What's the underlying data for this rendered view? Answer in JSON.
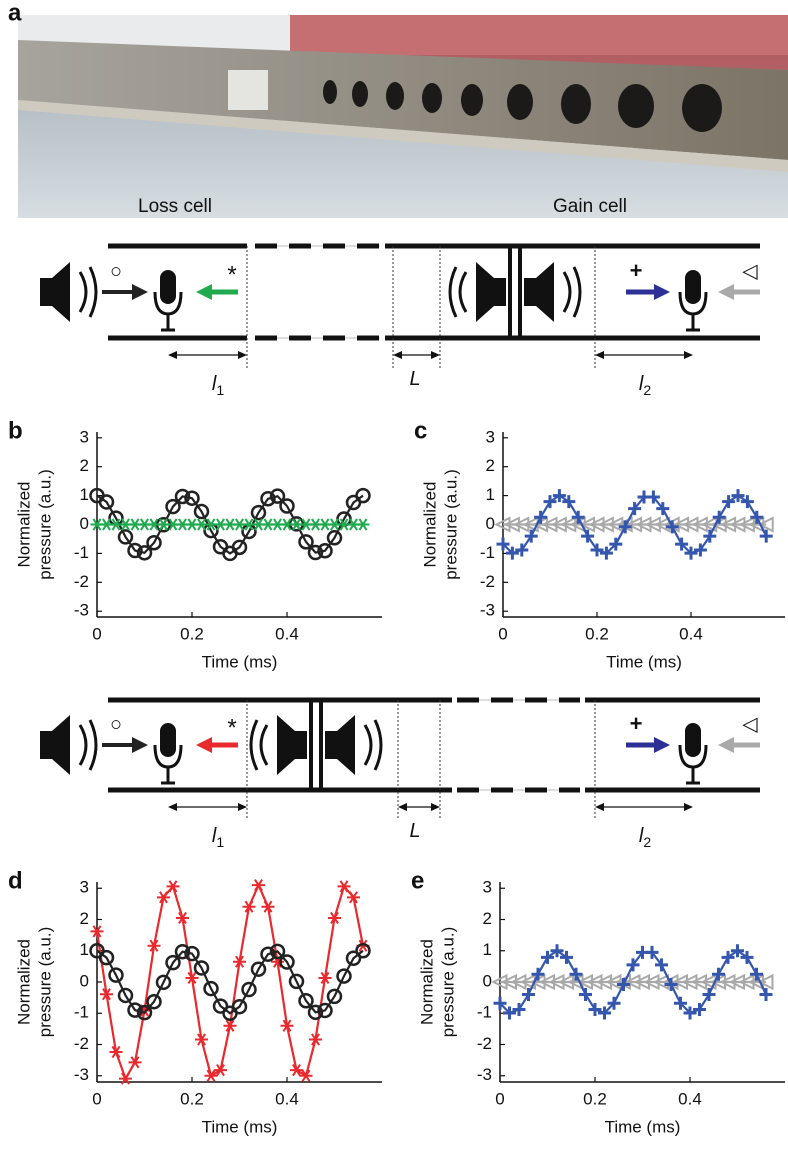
{
  "photo": {
    "panel": "a",
    "labels": [
      "Loss cell",
      "Gain cell"
    ]
  },
  "schematics": [
    {
      "symbols": [
        "○",
        "*",
        "+",
        "◁"
      ],
      "dims": [
        {
          "text": "l",
          "sub": "1"
        },
        {
          "text": "L"
        },
        {
          "text": "l",
          "sub": "2"
        }
      ]
    },
    {
      "symbols": [
        "○",
        "*",
        "+",
        "◁"
      ],
      "dims": [
        {
          "text": "l",
          "sub": "1"
        },
        {
          "text": "L"
        },
        {
          "text": "l",
          "sub": "2"
        }
      ]
    }
  ],
  "chart_data": [
    {
      "type": "line",
      "panel": "b",
      "xlabel": "Time (ms)",
      "ylabel": [
        "Normalized",
        "pressure (a.u.)"
      ],
      "xlim": [
        0,
        0.6
      ],
      "xticks": [
        0,
        0.2,
        0.4
      ],
      "ylim": [
        -3.2,
        3.2
      ],
      "yticks": [
        -3,
        -2,
        -1,
        0,
        1,
        2,
        3
      ],
      "x": [
        0,
        0.02,
        0.04,
        0.06,
        0.08,
        0.1,
        0.12,
        0.14,
        0.16,
        0.18,
        0.2,
        0.22,
        0.24,
        0.26,
        0.28,
        0.3,
        0.32,
        0.34,
        0.36,
        0.38,
        0.4,
        0.42,
        0.44,
        0.46,
        0.48,
        0.5,
        0.52,
        0.54,
        0.56
      ],
      "series": [
        {
          "color": "#222222",
          "marker": "circle",
          "values": [
            1,
            0.78,
            0.22,
            -0.43,
            -0.9,
            -0.98,
            -0.63,
            -0.01,
            0.62,
            0.97,
            0.91,
            0.45,
            -0.21,
            -0.77,
            -1,
            -0.79,
            -0.24,
            0.41,
            0.89,
            0.98,
            0.64,
            0.02,
            -0.6,
            -0.97,
            -0.91,
            -0.46,
            0.19,
            0.76,
            1
          ]
        },
        {
          "color": "#1faa4f",
          "marker": "asterisk",
          "values": [
            0,
            0,
            0,
            0,
            0,
            0,
            0,
            0,
            0,
            0,
            0,
            0,
            0,
            0,
            0,
            0,
            0,
            0,
            0,
            0,
            0,
            0,
            0,
            0,
            0,
            0,
            0,
            0,
            0
          ]
        }
      ]
    },
    {
      "type": "line",
      "panel": "c",
      "xlabel": "Time (ms)",
      "ylabel": [
        "Normalized",
        "pressure (a.u.)"
      ],
      "xlim": [
        0,
        0.6
      ],
      "xticks": [
        0,
        0.2,
        0.4
      ],
      "ylim": [
        -3.2,
        3.2
      ],
      "yticks": [
        -3,
        -2,
        -1,
        0,
        1,
        2,
        3
      ],
      "x": [
        0,
        0.02,
        0.04,
        0.06,
        0.08,
        0.1,
        0.12,
        0.14,
        0.16,
        0.18,
        0.2,
        0.22,
        0.24,
        0.26,
        0.28,
        0.3,
        0.32,
        0.34,
        0.36,
        0.38,
        0.4,
        0.42,
        0.44,
        0.46,
        0.48,
        0.5,
        0.52,
        0.54,
        0.56
      ],
      "series": [
        {
          "color": "#a9a9a9",
          "marker": "triangle-left",
          "values": [
            0,
            0,
            0,
            0,
            0,
            0,
            0,
            0,
            0,
            0,
            0,
            0,
            0,
            0,
            0,
            0,
            0,
            0,
            0,
            0,
            0,
            0,
            0,
            0,
            0,
            0,
            0,
            0,
            0
          ]
        },
        {
          "color": "#3556ad",
          "marker": "plus",
          "values": [
            -0.68,
            -0.99,
            -0.88,
            -0.4,
            0.25,
            0.79,
            1,
            0.79,
            0.25,
            -0.4,
            -0.88,
            -0.99,
            -0.68,
            -0.08,
            0.55,
            0.95,
            0.95,
            0.55,
            -0.08,
            -0.68,
            -0.99,
            -0.88,
            -0.4,
            0.25,
            0.79,
            1,
            0.79,
            0.25,
            -0.4
          ]
        }
      ]
    },
    {
      "type": "line",
      "panel": "d",
      "xlabel": "Time (ms)",
      "ylabel": [
        "Normalized",
        "pressure (a.u.)"
      ],
      "xlim": [
        0,
        0.6
      ],
      "xticks": [
        0,
        0.2,
        0.4
      ],
      "ylim": [
        -3.2,
        3.2
      ],
      "yticks": [
        -3,
        -2,
        -1,
        0,
        1,
        2,
        3
      ],
      "x": [
        0,
        0.02,
        0.04,
        0.06,
        0.08,
        0.1,
        0.12,
        0.14,
        0.16,
        0.18,
        0.2,
        0.22,
        0.24,
        0.26,
        0.28,
        0.3,
        0.32,
        0.34,
        0.36,
        0.38,
        0.4,
        0.42,
        0.44,
        0.46,
        0.48,
        0.5,
        0.52,
        0.54,
        0.56
      ],
      "series": [
        {
          "color": "#e8292e",
          "marker": "asterisk",
          "values": [
            1.62,
            -0.39,
            -2.24,
            -3.09,
            -2.57,
            -0.91,
            1.16,
            2.71,
            3.06,
            2.05,
            0.13,
            -1.84,
            -3,
            -2.82,
            -1.4,
            0.65,
            2.41,
            3.1,
            2.41,
            0.65,
            -1.4,
            -2.82,
            -3,
            -1.84,
            0.13,
            2.05,
            3.06,
            2.71,
            1.16
          ]
        },
        {
          "color": "#222222",
          "marker": "circle",
          "values": [
            1,
            0.78,
            0.22,
            -0.43,
            -0.9,
            -0.98,
            -0.63,
            -0.01,
            0.62,
            0.97,
            0.91,
            0.45,
            -0.21,
            -0.77,
            -1,
            -0.79,
            -0.24,
            0.41,
            0.89,
            0.98,
            0.64,
            0.02,
            -0.6,
            -0.97,
            -0.91,
            -0.46,
            0.19,
            0.76,
            1
          ]
        }
      ]
    },
    {
      "type": "line",
      "panel": "e",
      "xlabel": "Time (ms)",
      "ylabel": [
        "Normalized",
        "pressure (a.u.)"
      ],
      "xlim": [
        0,
        0.6
      ],
      "xticks": [
        0,
        0.2,
        0.4
      ],
      "ylim": [
        -3.2,
        3.2
      ],
      "yticks": [
        -3,
        -2,
        -1,
        0,
        1,
        2,
        3
      ],
      "x": [
        0,
        0.02,
        0.04,
        0.06,
        0.08,
        0.1,
        0.12,
        0.14,
        0.16,
        0.18,
        0.2,
        0.22,
        0.24,
        0.26,
        0.28,
        0.3,
        0.32,
        0.34,
        0.36,
        0.38,
        0.4,
        0.42,
        0.44,
        0.46,
        0.48,
        0.5,
        0.52,
        0.54,
        0.56
      ],
      "series": [
        {
          "color": "#a9a9a9",
          "marker": "triangle-left",
          "values": [
            0,
            0,
            0,
            0,
            0,
            0,
            0,
            0,
            0,
            0,
            0,
            0,
            0,
            0,
            0,
            0,
            0,
            0,
            0,
            0,
            0,
            0,
            0,
            0,
            0,
            0,
            0,
            0,
            0
          ]
        },
        {
          "color": "#3556ad",
          "marker": "plus",
          "values": [
            -0.68,
            -0.99,
            -0.88,
            -0.4,
            0.25,
            0.79,
            1,
            0.79,
            0.25,
            -0.4,
            -0.88,
            -0.99,
            -0.68,
            -0.08,
            0.55,
            0.95,
            0.95,
            0.55,
            -0.08,
            -0.68,
            -0.99,
            -0.88,
            -0.4,
            0.25,
            0.79,
            1,
            0.79,
            0.25,
            -0.4
          ]
        }
      ]
    }
  ]
}
